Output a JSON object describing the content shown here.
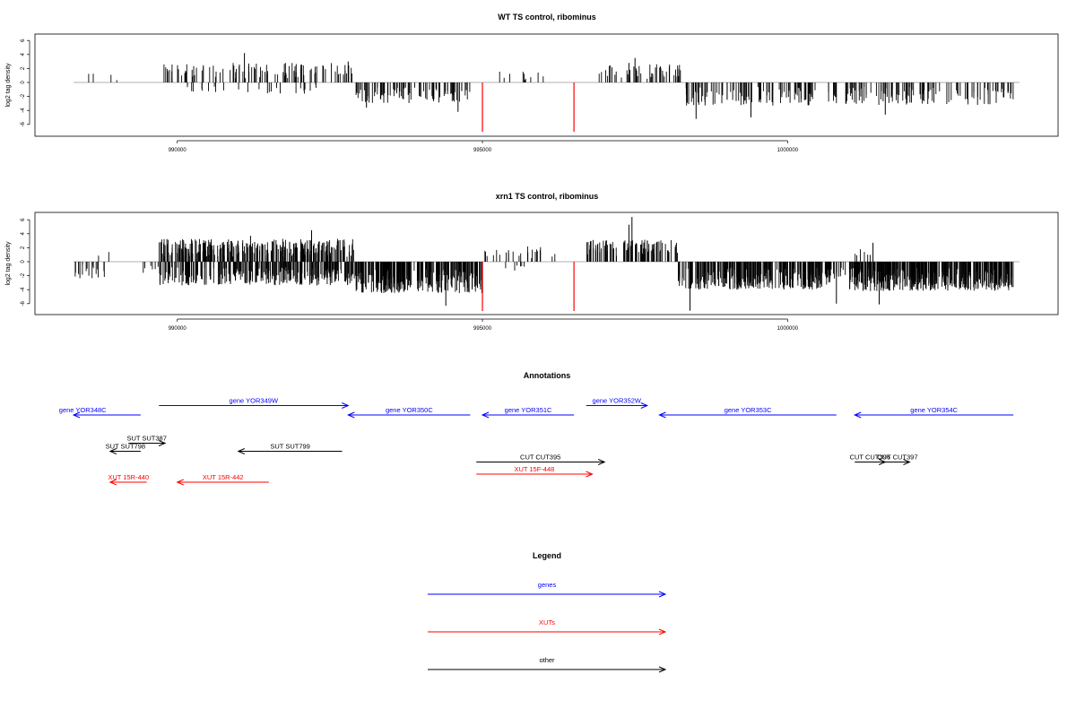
{
  "chart_data": [
    {
      "type": "bar",
      "title": "WT TS control, ribominus",
      "ylabel": "log2 tag density",
      "xlabel": "",
      "xlim": [
        988300,
        1003800
      ],
      "ylim": [
        -7,
        6
      ],
      "yticks": [
        -6,
        -4,
        -2,
        0,
        2,
        4,
        6
      ],
      "xticks": [
        "990000",
        "995000",
        "1000000"
      ],
      "xtick_values": [
        990000,
        995000,
        1000000
      ],
      "bar_color": "#000000",
      "baseline_color": "#999999",
      "markers": [
        {
          "x": 995000,
          "color": "#ff0000"
        },
        {
          "x": 996500,
          "color": "#ff0000"
        }
      ],
      "segments": [
        {
          "from": 988500,
          "to": 988700,
          "sign": 1,
          "amp": 1.3,
          "density": 0.012
        },
        {
          "from": 988900,
          "to": 989200,
          "sign": 1,
          "amp": 1.2,
          "density": 0.008
        },
        {
          "from": 989700,
          "to": 990900,
          "sign": 1,
          "amp": 2.6,
          "density": 0.025
        },
        {
          "from": 990000,
          "to": 990800,
          "sign": -1,
          "amp": 1.4,
          "density": 0.012
        },
        {
          "from": 990900,
          "to": 992900,
          "sign": 1,
          "amp": 2.8,
          "density": 0.035
        },
        {
          "from": 991000,
          "to": 992300,
          "sign": -1,
          "amp": 1.7,
          "density": 0.012
        },
        {
          "from": 992900,
          "to": 994800,
          "sign": -1,
          "amp": 3.0,
          "density": 0.045
        },
        {
          "from": 995200,
          "to": 996000,
          "sign": 1,
          "amp": 1.6,
          "density": 0.012
        },
        {
          "from": 996700,
          "to": 997000,
          "sign": 1,
          "amp": 1.5,
          "density": 0.008
        },
        {
          "from": 997000,
          "to": 998300,
          "sign": 1,
          "amp": 2.6,
          "density": 0.035
        },
        {
          "from": 998300,
          "to": 1003700,
          "sign": -1,
          "amp": 3.3,
          "density": 0.04
        }
      ],
      "peaks": [
        {
          "x": 991100,
          "y": 4.2
        },
        {
          "x": 997500,
          "y": 3.5
        },
        {
          "x": 997400,
          "y": 2.8
        },
        {
          "x": 992800,
          "y": 3.0
        },
        {
          "x": 993100,
          "y": -3.6
        },
        {
          "x": 998500,
          "y": -5.2
        },
        {
          "x": 999400,
          "y": -5.0
        },
        {
          "x": 1001600,
          "y": -4.6
        },
        {
          "x": 994600,
          "y": -4.2
        }
      ],
      "seed": 7
    },
    {
      "type": "bar",
      "title": "xrn1 TS control, ribominus",
      "ylabel": "log2 tag density",
      "xlabel": "",
      "xlim": [
        988300,
        1003800
      ],
      "ylim": [
        -7,
        6.5
      ],
      "yticks": [
        -6,
        -4,
        -2,
        0,
        2,
        4,
        6
      ],
      "xticks": [
        "990000",
        "995000",
        "1000000"
      ],
      "xtick_values": [
        990000,
        995000,
        1000000
      ],
      "bar_color": "#000000",
      "baseline_color": "#999999",
      "markers": [
        {
          "x": 995000,
          "color": "#ff0000"
        },
        {
          "x": 996500,
          "color": "#ff0000"
        }
      ],
      "segments": [
        {
          "from": 988300,
          "to": 988900,
          "sign": -1,
          "amp": 2.4,
          "density": 0.03
        },
        {
          "from": 988700,
          "to": 988900,
          "sign": 1,
          "amp": 1.6,
          "density": 0.01
        },
        {
          "from": 989400,
          "to": 989700,
          "sign": -1,
          "amp": 1.6,
          "density": 0.02
        },
        {
          "from": 989700,
          "to": 992900,
          "sign": 1,
          "amp": 3.3,
          "density": 0.09
        },
        {
          "from": 989700,
          "to": 992900,
          "sign": -1,
          "amp": 3.4,
          "density": 0.09
        },
        {
          "from": 992900,
          "to": 995000,
          "sign": -1,
          "amp": 4.5,
          "density": 0.13
        },
        {
          "from": 995000,
          "to": 996200,
          "sign": 1,
          "amp": 2.3,
          "density": 0.02
        },
        {
          "from": 995300,
          "to": 995700,
          "sign": -1,
          "amp": 1.4,
          "density": 0.015
        },
        {
          "from": 996700,
          "to": 998200,
          "sign": 1,
          "amp": 3.2,
          "density": 0.07
        },
        {
          "from": 998200,
          "to": 1000700,
          "sign": -1,
          "amp": 4.0,
          "density": 0.13
        },
        {
          "from": 1000700,
          "to": 1001000,
          "sign": -1,
          "amp": 2.5,
          "density": 0.04
        },
        {
          "from": 1001000,
          "to": 1003700,
          "sign": -1,
          "amp": 4.2,
          "density": 0.15
        },
        {
          "from": 1001100,
          "to": 1001400,
          "sign": 1,
          "amp": 1.8,
          "density": 0.02
        }
      ],
      "peaks": [
        {
          "x": 997450,
          "y": 6.4
        },
        {
          "x": 997400,
          "y": 5.3
        },
        {
          "x": 992200,
          "y": 4.5
        },
        {
          "x": 991200,
          "y": 3.7
        },
        {
          "x": 998400,
          "y": -7.0
        },
        {
          "x": 994400,
          "y": -6.3
        },
        {
          "x": 1000800,
          "y": -6.0
        },
        {
          "x": 1001500,
          "y": -6.1
        },
        {
          "x": 1001400,
          "y": 2.7
        }
      ],
      "seed": 19
    }
  ],
  "annotations": {
    "title": "Annotations",
    "xlim": [
      988300,
      1003800
    ],
    "rows": [
      {
        "label": "gene YOR348C",
        "from": 988300,
        "to": 989400,
        "dir": "left",
        "color": "#0000ff",
        "row": 0,
        "label_x": 988450
      },
      {
        "label": "gene YOR349W",
        "from": 989700,
        "to": 992800,
        "dir": "right",
        "color": "#0000ff",
        "row": -0.7,
        "label_x": 991250
      },
      {
        "label": "gene YOR350C",
        "from": 992800,
        "to": 994800,
        "dir": "left",
        "color": "#0000ff",
        "row": 0,
        "label_x": 993800
      },
      {
        "label": "gene YOR351C",
        "from": 995000,
        "to": 996500,
        "dir": "left",
        "color": "#0000ff",
        "row": 0,
        "label_x": 995750
      },
      {
        "label": "gene YOR352W",
        "from": 996700,
        "to": 997700,
        "dir": "right",
        "color": "#0000ff",
        "row": -0.7,
        "label_x": 997200
      },
      {
        "label": "gene YOR353C",
        "from": 997900,
        "to": 1000800,
        "dir": "left",
        "color": "#0000ff",
        "row": 0,
        "label_x": 999350
      },
      {
        "label": "gene YOR354C",
        "from": 1001100,
        "to": 1003700,
        "dir": "left",
        "color": "#0000ff",
        "row": 0,
        "label_x": 1002400
      },
      {
        "label": "SUT SUT387",
        "from": 989200,
        "to": 989800,
        "dir": "right",
        "color": "#000000",
        "row": 2.1,
        "label_x": 989500
      },
      {
        "label": "SUT SUT798",
        "from": 988900,
        "to": 989400,
        "dir": "left",
        "color": "#000000",
        "row": 2.7,
        "label_x": 989150
      },
      {
        "label": "SUT SUT799",
        "from": 991000,
        "to": 992700,
        "dir": "left",
        "color": "#000000",
        "row": 2.7,
        "label_x": 991850
      },
      {
        "label": "CUT CUT395",
        "from": 994900,
        "to": 997000,
        "dir": "right",
        "color": "#000000",
        "row": 3.5,
        "label_x": 995950
      },
      {
        "label": "CUT CUT396",
        "from": 1001100,
        "to": 1001600,
        "dir": "right",
        "color": "#000000",
        "row": 3.5,
        "label_x": 1001350
      },
      {
        "label": "CUT CUT397",
        "from": 1001600,
        "to": 1002000,
        "dir": "right",
        "color": "#000000",
        "row": 3.5,
        "label_x": 1001800
      },
      {
        "label": "XUT 15R-440",
        "from": 988900,
        "to": 989500,
        "dir": "left",
        "color": "#ff0000",
        "row": 5.0,
        "label_x": 989200
      },
      {
        "label": "XUT 15R-442",
        "from": 990000,
        "to": 991500,
        "dir": "left",
        "color": "#ff0000",
        "row": 5.0,
        "label_x": 990750
      },
      {
        "label": "XUT 15F-448",
        "from": 994900,
        "to": 996800,
        "dir": "right",
        "color": "#ff0000",
        "row": 4.4,
        "label_x": 995850
      }
    ]
  },
  "legend": {
    "title": "Legend",
    "items": [
      {
        "label": "genes",
        "color": "#0000ff"
      },
      {
        "label": "XUTs",
        "color": "#ff0000"
      },
      {
        "label": "other",
        "color": "#000000"
      }
    ]
  }
}
